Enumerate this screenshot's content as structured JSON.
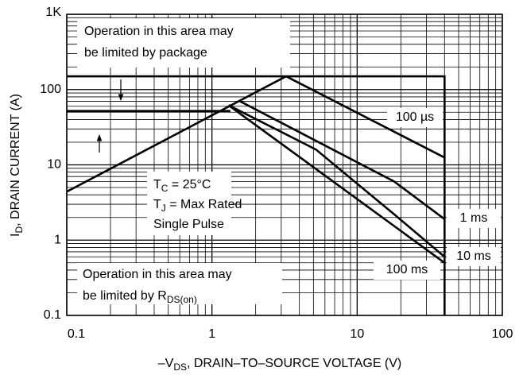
{
  "chart_data": {
    "type": "line",
    "xscale": "log",
    "yscale": "log",
    "xlim": [
      0.1,
      100
    ],
    "xticks": [
      0.1,
      1,
      10,
      100
    ],
    "ylim": [
      0.1,
      1000
    ],
    "yticks": [
      0.1,
      1,
      10,
      100,
      {
        "value": 1000,
        "label": "1K"
      }
    ],
    "grid": true,
    "minor_grid": true,
    "color": "#000000",
    "x_label": [
      {
        "t": "–V"
      },
      {
        "t": "DS",
        "sub": true
      },
      {
        "t": ", DRAIN–TO–SOURCE VOLTAGE (V)"
      }
    ],
    "y_label": [
      {
        "t": "I"
      },
      {
        "t": "D",
        "sub": true
      },
      {
        "t": ", DRAIN CURRENT (A)"
      }
    ],
    "series": [
      {
        "x": [
          0.1,
          40,
          40
        ],
        "values": [
          150,
          150,
          0.1
        ]
      },
      {
        "x": [
          0.1,
          1.34
        ],
        "values": [
          52,
          52
        ]
      },
      {
        "x": [
          0.1,
          3.24
        ],
        "values": [
          4.4,
          150
        ]
      },
      {
        "name": "100 µs",
        "x": [
          3.24,
          40
        ],
        "values": [
          150,
          12.5
        ]
      },
      {
        "name": "1 ms",
        "x": [
          1.56,
          18,
          40
        ],
        "values": [
          70,
          6,
          1.9
        ]
      },
      {
        "name": "10 ms",
        "x": [
          1.3,
          5.2,
          18,
          40
        ],
        "values": [
          62,
          16,
          2.2,
          0.6
        ]
      },
      {
        "name": "100 ms",
        "x": [
          1.3,
          40
        ],
        "values": [
          62,
          0.5
        ]
      }
    ],
    "annotations": [
      {
        "lines": [
          [
            {
              "t": "Operation in this area may"
            }
          ],
          [
            {
              "t": "be limited by package"
            }
          ]
        ]
      },
      {
        "lines": [
          [
            {
              "t": "T"
            },
            {
              "t": "C",
              "sub": true
            },
            {
              "t": " = 25°C"
            }
          ],
          [
            {
              "t": "T"
            },
            {
              "t": "J",
              "sub": true
            },
            {
              "t": " = Max Rated"
            }
          ],
          [
            {
              "t": "Single Pulse"
            }
          ]
        ]
      },
      {
        "lines": [
          [
            {
              "t": "Operation in this area may"
            }
          ],
          [
            {
              "t": "be limited by R"
            },
            {
              "t": "DS(on)",
              "sub": true
            }
          ]
        ]
      }
    ]
  }
}
